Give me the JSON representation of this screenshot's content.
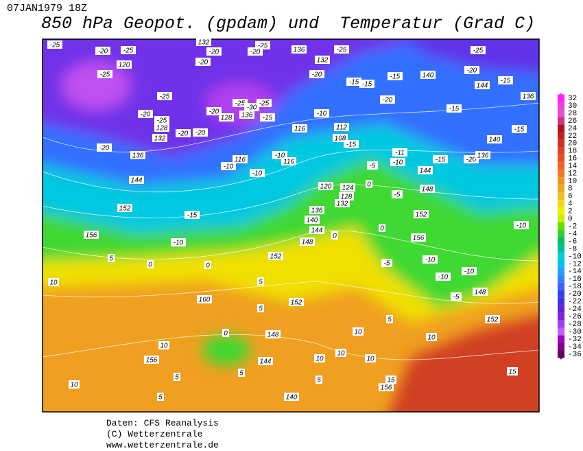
{
  "header": {
    "date": "07JAN1979 18Z",
    "title": "850 hPa Geopot. (gpdam) und  Temperatur (Grad C)"
  },
  "map": {
    "labels": [
      -25,
      -20,
      -25,
      120,
      -25,
      -25,
      -20,
      -25,
      128,
      132,
      -20,
      136,
      -20,
      -20,
      -20,
      128,
      -25,
      -25,
      -30,
      136,
      -15,
      132,
      -20,
      -20,
      -25,
      -20,
      136,
      132,
      -20,
      -25,
      -15,
      -15,
      -15,
      140,
      -20,
      -20,
      -25,
      -15,
      144,
      136,
      -15,
      -15,
      140,
      -20,
      136,
      -15,
      144,
      148,
      -10,
      116,
      112,
      108,
      -15,
      -11,
      -10,
      -5,
      116,
      -10,
      -10,
      116,
      -10,
      -15,
      152,
      144,
      156,
      -10,
      5,
      0,
      0,
      152,
      136,
      140,
      144,
      148,
      0,
      120,
      124,
      128,
      132,
      0,
      -5,
      0,
      152,
      156,
      -10,
      -5,
      -10,
      -10,
      -5,
      148,
      -10,
      152,
      10,
      5,
      160,
      152,
      5,
      10,
      0,
      148,
      156,
      5,
      5,
      144,
      10,
      10,
      10,
      10,
      10,
      5,
      10,
      5,
      140,
      156,
      15,
      15,
      5
    ]
  },
  "colorbar": {
    "levels": [
      32,
      30,
      28,
      26,
      24,
      22,
      20,
      18,
      16,
      14,
      12,
      10,
      8,
      6,
      4,
      2,
      0,
      -2,
      -4,
      -6,
      -8,
      -10,
      -12,
      -14,
      -16,
      -18,
      -20,
      -22,
      -24,
      -26,
      -28,
      -30,
      -32,
      -34,
      -36
    ],
    "colors": [
      "#ff20ff",
      "#f040e0",
      "#e050d0",
      "#d03090",
      "#b01020",
      "#c02018",
      "#d03020",
      "#e04020",
      "#e85020",
      "#f06020",
      "#f07820",
      "#f09020",
      "#f0a820",
      "#f0c020",
      "#f0d818",
      "#f0f000",
      "#c8f000",
      "#60e000",
      "#30d030",
      "#00c060",
      "#00c0a0",
      "#00d0d0",
      "#00c0f0",
      "#20a0ff",
      "#3080ff",
      "#4060ff",
      "#3040f0",
      "#4030e0",
      "#6020e0",
      "#8020e0",
      "#a040f0",
      "#c060ff",
      "#a000c0",
      "#800090",
      "#600060"
    ]
  },
  "footer": {
    "line1": "Daten: CFS Reanalysis",
    "line2": "(C) Wetterzentrale",
    "line3": "www.wetterzentrale.de"
  }
}
